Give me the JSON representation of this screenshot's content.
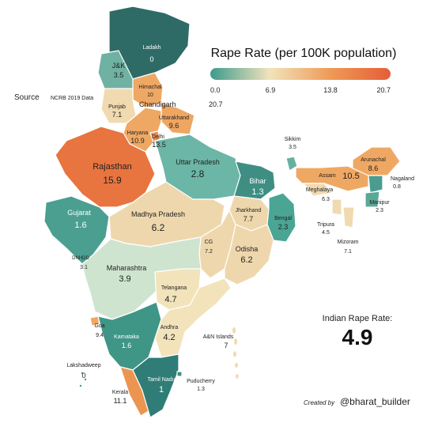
{
  "title": "Rape Rate (per 100K population)",
  "legend": {
    "ticks": [
      "0.0",
      "6.9",
      "13.8",
      "20.7"
    ],
    "colors": [
      "#3d9a8c",
      "#f2e3bb",
      "#ee9a56",
      "#e65d38"
    ]
  },
  "source": {
    "label": "Source",
    "text": "NCRB 2019 Data"
  },
  "national": {
    "label": "Indian Rape Rate:",
    "value": "4.9"
  },
  "credit": {
    "prefix": "Created by",
    "handle": "@bharat_builder"
  },
  "states": {
    "ladakh": {
      "name": "Ladakh",
      "value": "0"
    },
    "jk": {
      "name": "J&K",
      "value": "3.5"
    },
    "himachal": {
      "name": "Himachal",
      "value": "10"
    },
    "chandigarh": {
      "name": "Chandigarh",
      "value": "20.7"
    },
    "punjab": {
      "name": "Punjab",
      "value": "7.1"
    },
    "uttarakhand": {
      "name": "Uttarakhand",
      "value": "9.6"
    },
    "haryana": {
      "name": "Haryana",
      "value": "10.9"
    },
    "delhi": {
      "name": "Delhi",
      "value": "13.5"
    },
    "rajasthan": {
      "name": "Rajasthan",
      "value": "15.9"
    },
    "up": {
      "name": "Uttar Pradesh",
      "value": "2.8"
    },
    "bihar": {
      "name": "Bihar",
      "value": "1.3"
    },
    "sikkim": {
      "name": "Sikkim",
      "value": "3.5"
    },
    "arunachal": {
      "name": "Arunachal",
      "value": "8.6"
    },
    "assam": {
      "name": "Assam",
      "value": "10.5"
    },
    "nagaland": {
      "name": "Nagaland",
      "value": "0.8"
    },
    "meghalaya": {
      "name": "Meghalaya",
      "value": "6.3"
    },
    "manipur": {
      "name": "Manipur",
      "value": "2.3"
    },
    "tripura": {
      "name": "Tripura",
      "value": "4.5"
    },
    "mizoram": {
      "name": "Mizoram",
      "value": "7.1"
    },
    "gujarat": {
      "name": "Gujarat",
      "value": "1.6"
    },
    "mp": {
      "name": "Madhya Pradesh",
      "value": "6.2"
    },
    "jharkhand": {
      "name": "Jharkhand",
      "value": "7.7"
    },
    "bengal": {
      "name": "Bengal",
      "value": "2.3"
    },
    "cg": {
      "name": "CG",
      "value": "7.2"
    },
    "odisha": {
      "name": "Odisha",
      "value": "6.2"
    },
    "dnhdd": {
      "name": "DNHDD",
      "value": "3.1"
    },
    "maharashtra": {
      "name": "Maharashtra",
      "value": "3.9"
    },
    "telangana": {
      "name": "Telangana",
      "value": "4.7"
    },
    "goa": {
      "name": "Goa",
      "value": "9.4"
    },
    "karnataka": {
      "name": "Karnataka",
      "value": "1.6"
    },
    "andhra": {
      "name": "Andhra",
      "value": "4.2"
    },
    "an": {
      "name": "A&N Islands",
      "value": "7"
    },
    "lakshadweep": {
      "name": "Lakshadweep",
      "value": "0"
    },
    "tn": {
      "name": "Tamil Nadu",
      "value": "1"
    },
    "puducherry": {
      "name": "Puducherry",
      "value": "1.3"
    },
    "kerala": {
      "name": "Kerala",
      "value": "11.1"
    }
  }
}
